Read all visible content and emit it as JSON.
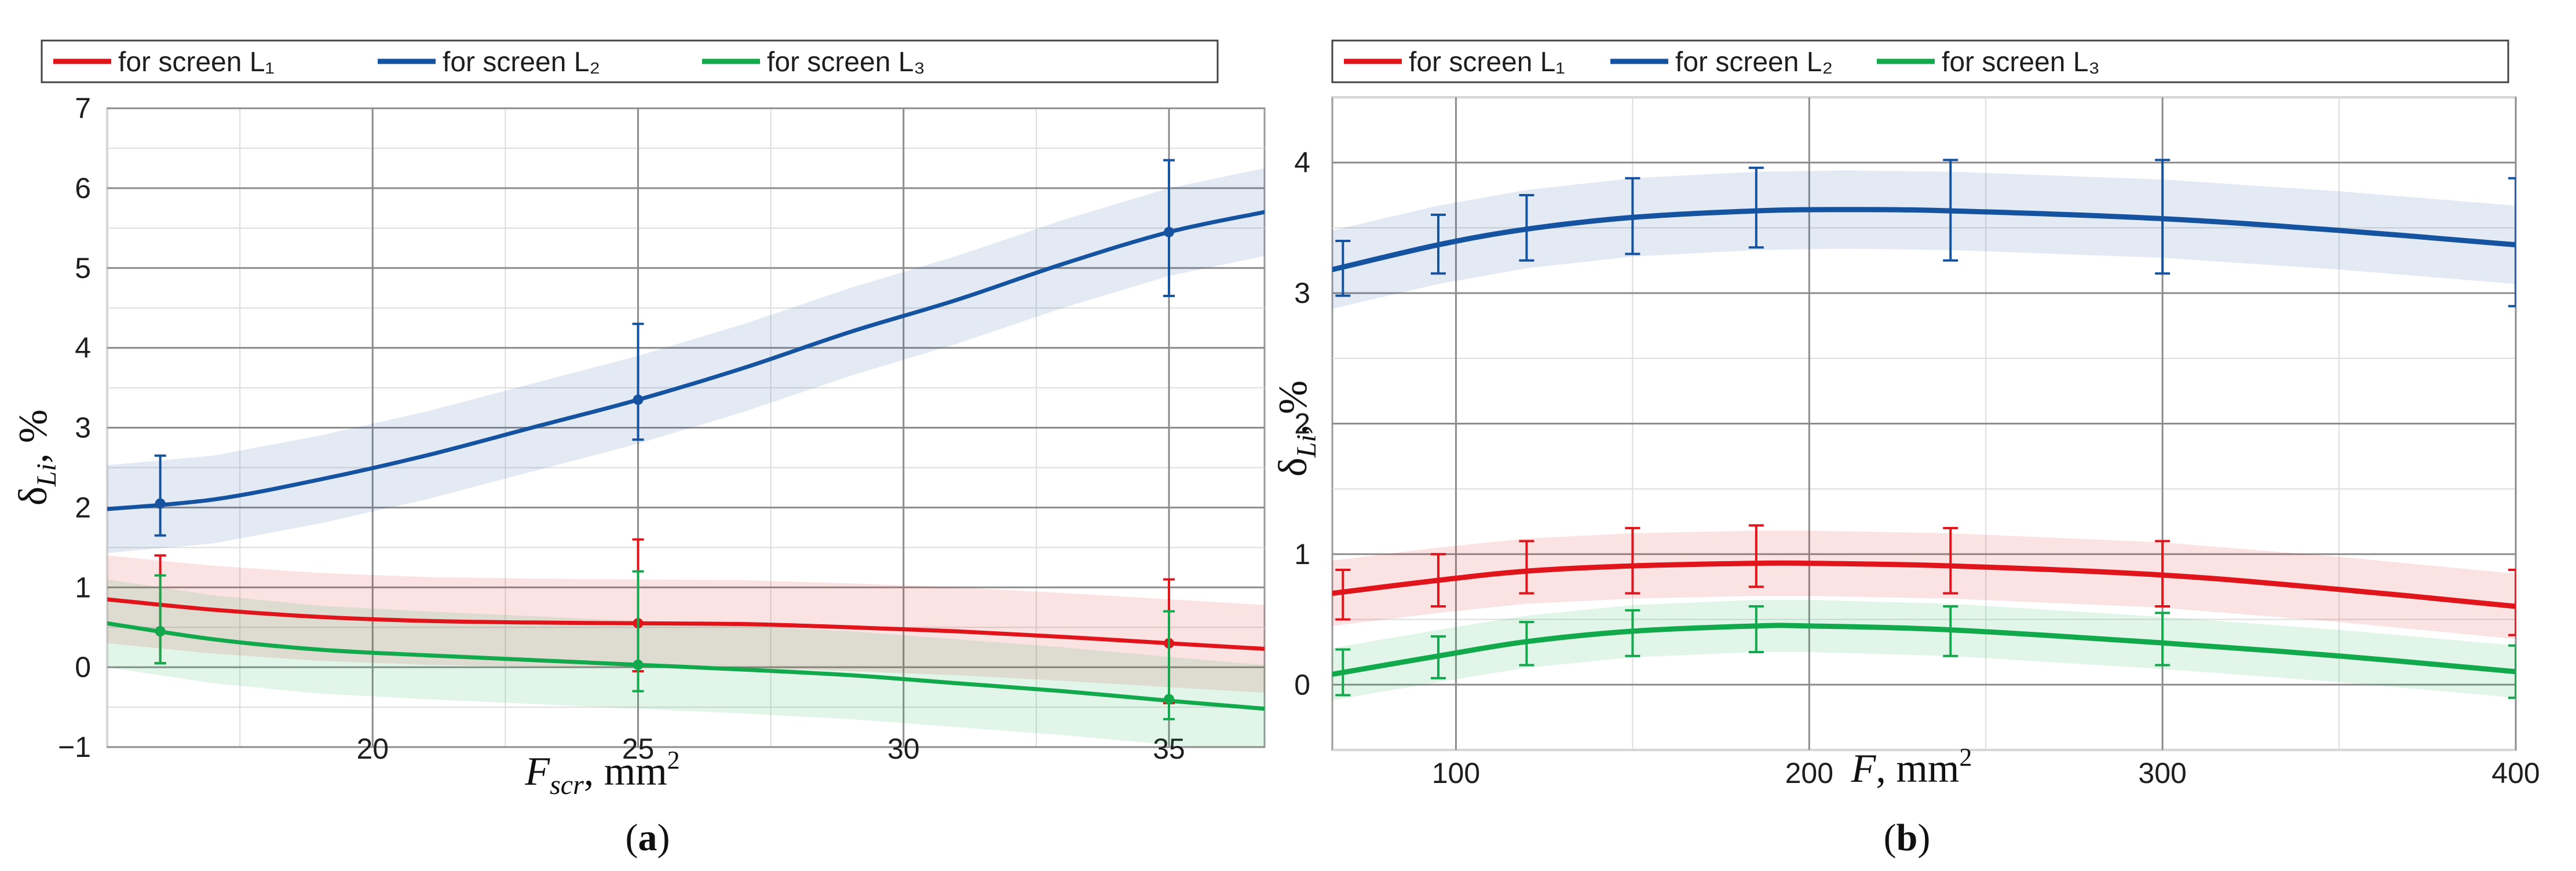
{
  "chart_data": [
    {
      "type": "line",
      "panel_label": "a",
      "xlabel": "F_scr, mm²",
      "ylabel": "δ_Li, %",
      "xlim": [
        15,
        36.8
      ],
      "ylim": [
        -1,
        7
      ],
      "x_ticks": [
        20,
        25,
        30,
        35
      ],
      "y_ticks": [
        -1,
        0,
        1,
        2,
        3,
        4,
        5,
        6,
        7
      ],
      "grid": true,
      "legend_position": "top",
      "series": [
        {
          "name": "for screen L₁",
          "color": "#e0141b",
          "curve_x": [
            15,
            17,
            19,
            21,
            23,
            25,
            27,
            29,
            31,
            33,
            35,
            36.8
          ],
          "curve_y": [
            0.85,
            0.72,
            0.63,
            0.58,
            0.56,
            0.55,
            0.54,
            0.5,
            0.45,
            0.38,
            0.3,
            0.23
          ],
          "band_width": 0.55,
          "points": [
            {
              "x": 16,
              "y": 0.45,
              "lo": 0.05,
              "hi": 1.4
            },
            {
              "x": 25,
              "y": 0.55,
              "lo": -0.05,
              "hi": 1.6
            },
            {
              "x": 35,
              "y": 0.3,
              "lo": -0.45,
              "hi": 1.1
            }
          ]
        },
        {
          "name": "for screen L₂",
          "color": "#1553a0",
          "curve_x": [
            15,
            17,
            19,
            21,
            23,
            25,
            27,
            29,
            31,
            33,
            35,
            36.8
          ],
          "curve_y": [
            1.98,
            2.1,
            2.35,
            2.65,
            3.0,
            3.35,
            3.75,
            4.2,
            4.6,
            5.05,
            5.45,
            5.7
          ],
          "band_width": 0.55,
          "points": [
            {
              "x": 16,
              "y": 2.05,
              "lo": 1.65,
              "hi": 2.65
            },
            {
              "x": 25,
              "y": 3.35,
              "lo": 2.85,
              "hi": 4.3
            },
            {
              "x": 35,
              "y": 5.45,
              "lo": 4.65,
              "hi": 6.35
            }
          ]
        },
        {
          "name": "for screen L₃",
          "color": "#12a94c",
          "curve_x": [
            15,
            17,
            19,
            21,
            23,
            25,
            27,
            29,
            31,
            33,
            35,
            36.8
          ],
          "curve_y": [
            0.55,
            0.35,
            0.22,
            0.15,
            0.09,
            0.03,
            -0.03,
            -0.1,
            -0.2,
            -0.3,
            -0.42,
            -0.52
          ],
          "band_width": 0.55,
          "points": [
            {
              "x": 16,
              "y": 0.45,
              "lo": 0.05,
              "hi": 1.15
            },
            {
              "x": 25,
              "y": 0.03,
              "lo": -0.3,
              "hi": 1.2
            },
            {
              "x": 35,
              "y": -0.4,
              "lo": -0.65,
              "hi": 0.7
            }
          ]
        }
      ]
    },
    {
      "type": "line",
      "panel_label": "b",
      "xlabel": "F, mm²",
      "ylabel": "δ_Li, %",
      "xlim": [
        65,
        400
      ],
      "ylim": [
        -0.5,
        4.5
      ],
      "x_ticks": [
        100,
        200,
        300,
        400
      ],
      "y_ticks": [
        0,
        1,
        2,
        3,
        4
      ],
      "grid": true,
      "legend_position": "top",
      "series": [
        {
          "name": "for screen L₁",
          "color": "#e0141b",
          "curve_x": [
            65,
            95,
            120,
            150,
            185,
            200,
            240,
            300,
            350,
            400
          ],
          "curve_y": [
            0.7,
            0.8,
            0.87,
            0.91,
            0.93,
            0.93,
            0.91,
            0.84,
            0.73,
            0.6
          ],
          "band_width": 0.25,
          "points": [
            {
              "x": 68,
              "y": 0.68,
              "lo": 0.5,
              "hi": 0.88
            },
            {
              "x": 95,
              "y": 0.8,
              "lo": 0.6,
              "hi": 1.0
            },
            {
              "x": 120,
              "y": 0.88,
              "lo": 0.7,
              "hi": 1.1
            },
            {
              "x": 150,
              "y": 0.93,
              "lo": 0.7,
              "hi": 1.2
            },
            {
              "x": 185,
              "y": 0.95,
              "lo": 0.75,
              "hi": 1.22
            },
            {
              "x": 240,
              "y": 0.92,
              "lo": 0.7,
              "hi": 1.2
            },
            {
              "x": 300,
              "y": 0.85,
              "lo": 0.6,
              "hi": 1.1
            },
            {
              "x": 400,
              "y": 0.6,
              "lo": 0.38,
              "hi": 0.88
            }
          ]
        },
        {
          "name": "for screen L₂",
          "color": "#1553a0",
          "curve_x": [
            65,
            95,
            120,
            150,
            185,
            210,
            240,
            300,
            350,
            400
          ],
          "curve_y": [
            3.18,
            3.37,
            3.49,
            3.58,
            3.63,
            3.64,
            3.63,
            3.57,
            3.48,
            3.37
          ],
          "band_width": 0.3,
          "points": [
            {
              "x": 68,
              "y": 3.18,
              "lo": 2.98,
              "hi": 3.4
            },
            {
              "x": 95,
              "y": 3.37,
              "lo": 3.15,
              "hi": 3.6
            },
            {
              "x": 120,
              "y": 3.5,
              "lo": 3.25,
              "hi": 3.75
            },
            {
              "x": 150,
              "y": 3.58,
              "lo": 3.3,
              "hi": 3.88
            },
            {
              "x": 185,
              "y": 3.63,
              "lo": 3.35,
              "hi": 3.96
            },
            {
              "x": 240,
              "y": 3.63,
              "lo": 3.25,
              "hi": 4.02
            },
            {
              "x": 300,
              "y": 3.57,
              "lo": 3.15,
              "hi": 4.02
            },
            {
              "x": 400,
              "y": 3.37,
              "lo": 2.9,
              "hi": 3.88
            }
          ]
        },
        {
          "name": "for screen L₃",
          "color": "#12a94c",
          "curve_x": [
            65,
            95,
            120,
            150,
            185,
            200,
            240,
            300,
            350,
            400
          ],
          "curve_y": [
            0.08,
            0.22,
            0.33,
            0.41,
            0.45,
            0.45,
            0.42,
            0.32,
            0.22,
            0.1
          ],
          "band_width": 0.2,
          "points": [
            {
              "x": 68,
              "y": 0.1,
              "lo": -0.08,
              "hi": 0.27
            },
            {
              "x": 95,
              "y": 0.22,
              "lo": 0.05,
              "hi": 0.37
            },
            {
              "x": 120,
              "y": 0.33,
              "lo": 0.15,
              "hi": 0.48
            },
            {
              "x": 150,
              "y": 0.42,
              "lo": 0.22,
              "hi": 0.57
            },
            {
              "x": 185,
              "y": 0.45,
              "lo": 0.25,
              "hi": 0.6
            },
            {
              "x": 240,
              "y": 0.42,
              "lo": 0.22,
              "hi": 0.6
            },
            {
              "x": 300,
              "y": 0.33,
              "lo": 0.15,
              "hi": 0.55
            },
            {
              "x": 400,
              "y": 0.1,
              "lo": -0.1,
              "hi": 0.3
            }
          ]
        }
      ]
    }
  ]
}
